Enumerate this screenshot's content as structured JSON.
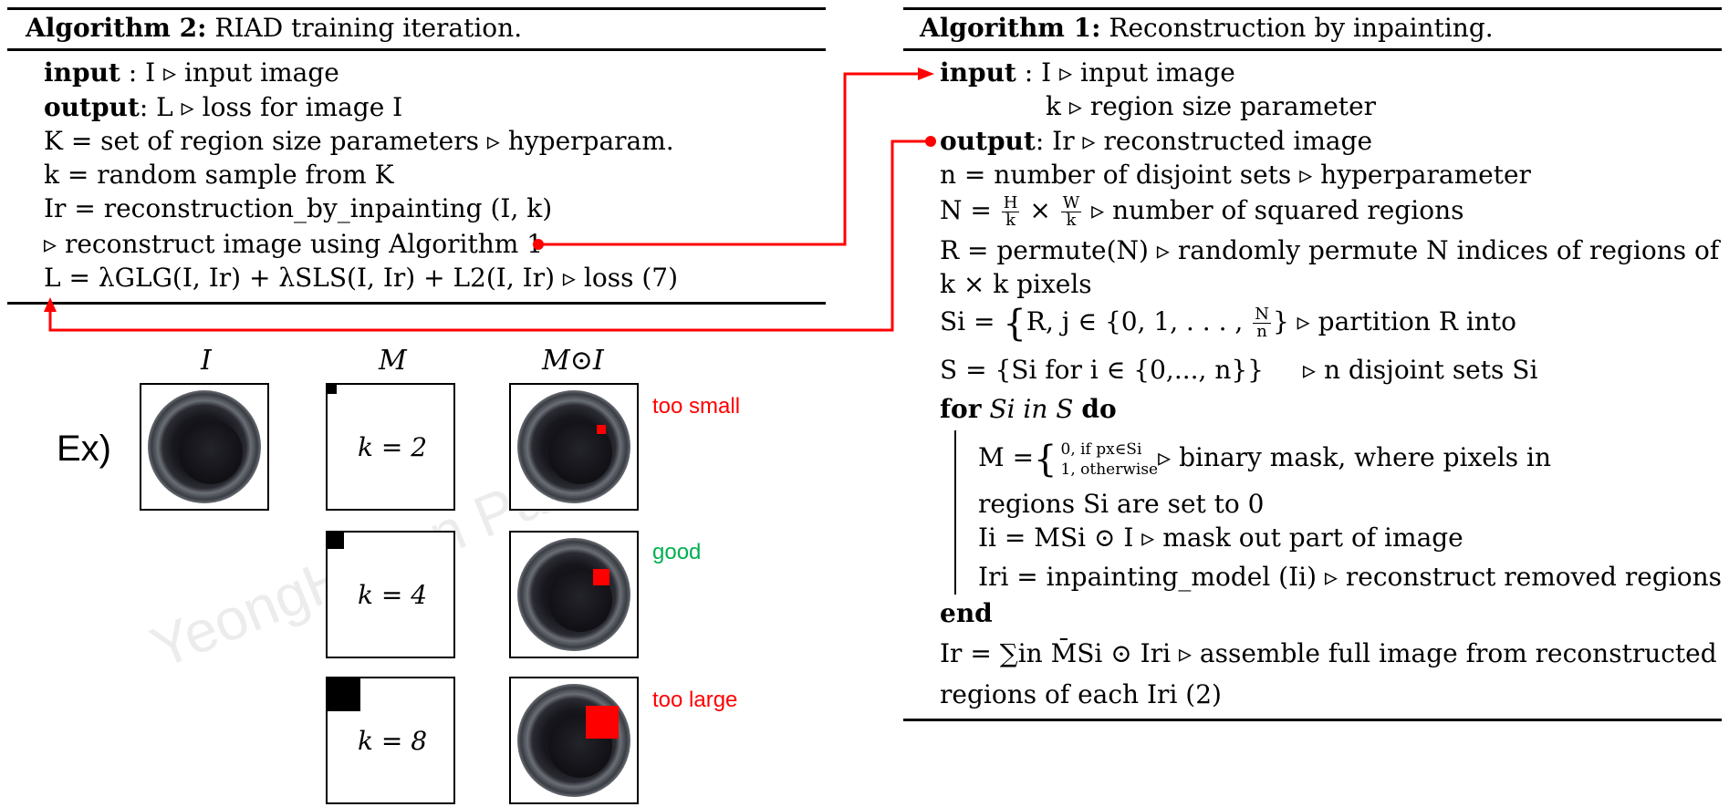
{
  "colors": {
    "accent_red": "#ff0000",
    "good_green": "#00b050",
    "rule": "#000000"
  },
  "alg2": {
    "title_bold": "Algorithm 2:",
    "title_rest": " RIAD training iteration.",
    "input_kw": "input",
    "input_rest": "  : I ▹ input image",
    "output_kw": "output",
    "output_rest": ": L ▹ loss for image I",
    "line_K": "K = set of region size parameters ▹ hyperparam.",
    "line_k": "k = random sample from K",
    "line_Ir": "Ir = reconstruction_by_inpainting (I, k)",
    "line_recon": "▹ reconstruct image using Algorithm  1",
    "line_loss": "L = λGLG(I, Ir) + λSLS(I, Ir) + L2(I, Ir) ▹ loss (7)"
  },
  "alg1": {
    "title_bold": "Algorithm 1:",
    "title_rest": " Reconstruction by inpainting.",
    "input_kw": "input",
    "input_rest": "  : I ▹ input image",
    "input_k": "k ▹ region size parameter",
    "output_kw": "output",
    "output_rest": ": Ir ▹ reconstructed image",
    "line_n": "n = number of disjoint sets ▹ hyperparameter",
    "line_N_pre": "N = ",
    "line_N_frac1_num": "H",
    "line_N_frac1_den": "k",
    "line_N_times": " × ",
    "line_N_frac2_num": "W",
    "line_N_frac2_den": "k",
    "line_N_post": " ▹ number of squared regions",
    "line_R": "R = permute(N) ▹ randomly permute N indices of regions of",
    "line_R2": "k × k pixels",
    "line_Si_pre": "Si = ",
    "line_Si_body": "R",
    "line_Si_cond": ", j ∈ {0, 1, . . . , ",
    "line_Si_frac_num": "N",
    "line_Si_frac_den": "n",
    "line_Si_end": "} ▹ partition R into",
    "line_S": "S = {Si for i ∈ {0,..., n}}",
    "line_S_comment": "▹ n disjoint sets Si",
    "for_kw": "for",
    "for_mid": " Si in S ",
    "do_kw": "do",
    "mask_pre": "M",
    "mask_case1": "0,    if px∈Si",
    "mask_case2": "1,    otherwise",
    "mask_post": "▹ binary mask, where pixels in",
    "mask_line2": "regions Si are set to 0",
    "line_Ii": "Ii = MSi ⊙ I ▹ mask out part of image",
    "line_Iri": "Iri = inpainting_model (Ii) ▹ reconstruct removed regions",
    "end_kw": "end",
    "line_sum": "Ir = ∑in M̄Si ⊙ Iri ▹ assemble full image from reconstructed",
    "line_sum2": "regions of each Iri (2)"
  },
  "example": {
    "label": "Ex)",
    "col_I": "I",
    "col_M": "M",
    "col_MI": "M⊙I",
    "rows": [
      {
        "k_label": "k = 2",
        "note": "too small",
        "note_color": "#ff0000",
        "k": 2
      },
      {
        "k_label": "k = 4",
        "note": "good",
        "note_color": "#00b050",
        "k": 4
      },
      {
        "k_label": "k = 8",
        "note": "too large",
        "note_color": "#ff0000",
        "k": 8
      }
    ],
    "watermark": "YeongHyeon Park"
  }
}
